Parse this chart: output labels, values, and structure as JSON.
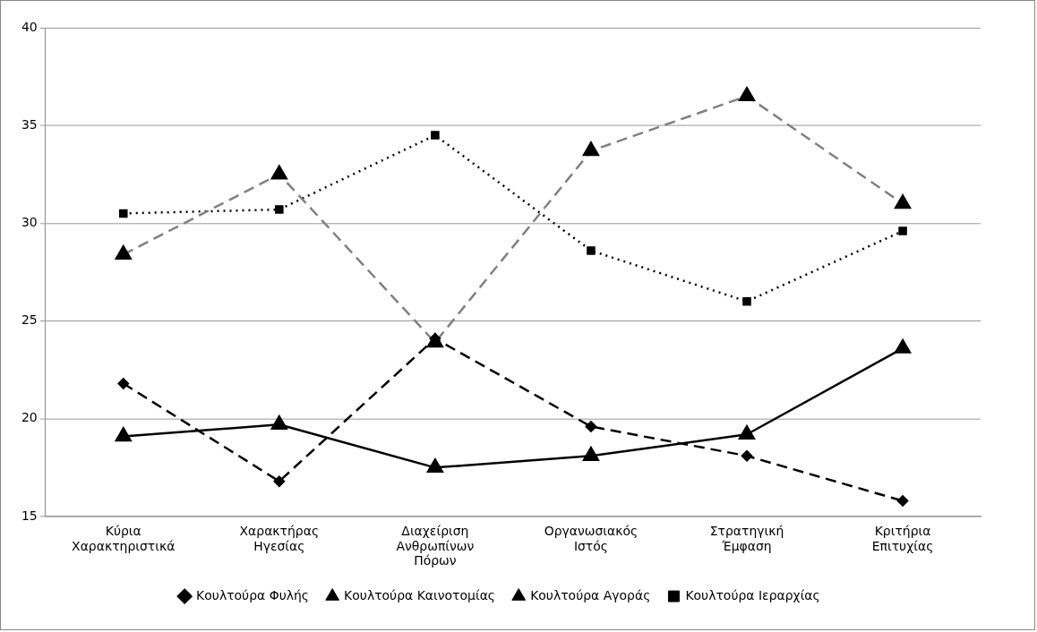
{
  "chart_data": {
    "type": "line",
    "categories": [
      "Κύρια Χαρακτηριστικά",
      "Χαρακτήρας Ηγεσίας",
      "Διαχείριση Ανθρωπίνων Πόρων",
      "Οργανωσιακός Ιστός",
      "Στρατηγική Έμφαση",
      "Κριτήρια Επιτυχίας"
    ],
    "series": [
      {
        "name": "Κουλτούρα Φυλής",
        "color": "#000000",
        "marker": "diamond",
        "line_style": "dashed",
        "values": [
          21.8,
          16.8,
          24.1,
          19.6,
          18.1,
          15.8
        ]
      },
      {
        "name": "Κουλτούρα Καινοτομίας",
        "color": "#000000",
        "marker": "triangle",
        "line_style": "solid",
        "values": [
          19.1,
          19.7,
          17.5,
          18.1,
          19.2,
          23.6
        ]
      },
      {
        "name": "Κουλτούρα Αγοράς",
        "color": "#808080",
        "marker": "triangle",
        "line_style": "dashed",
        "values": [
          28.4,
          32.5,
          23.9,
          33.7,
          36.5,
          31.0
        ]
      },
      {
        "name": "Κουλτούρα Ιεραρχίας",
        "color": "#000000",
        "marker": "square",
        "line_style": "dotted",
        "values": [
          30.5,
          30.7,
          34.5,
          28.6,
          26.0,
          29.6
        ]
      }
    ],
    "ylim": [
      15,
      40
    ],
    "yticks": [
      15,
      20,
      25,
      30,
      35,
      40
    ],
    "grid": "y",
    "legend": "bottom"
  }
}
